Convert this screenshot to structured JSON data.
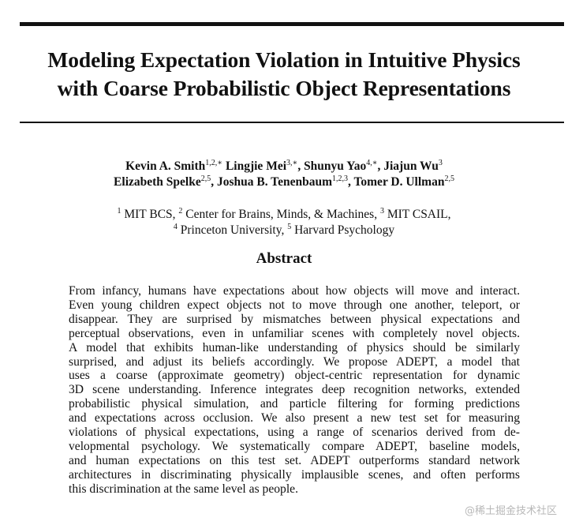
{
  "title_lines": [
    "Modeling Expectation Violation in Intuitive Physics",
    "with Coarse Probabilistic Object Representations"
  ],
  "authors_line1": [
    {
      "name": "Kevin A. Smith",
      "sup": "1,2,∗"
    },
    {
      "name": "Lingjie Mei",
      "sup": "3,∗"
    },
    {
      "name": "Shunyu Yao",
      "sup": "4,∗"
    },
    {
      "name": "Jiajun Wu",
      "sup": "3"
    }
  ],
  "authors_line2": [
    {
      "name": "Elizabeth Spelke",
      "sup": "2,5"
    },
    {
      "name": "Joshua B. Tenenbaum",
      "sup": "1,2,3"
    },
    {
      "name": "Tomer D. Ullman",
      "sup": "2,5"
    }
  ],
  "affiliations_line1": [
    {
      "sup": "1",
      "name": "MIT BCS"
    },
    {
      "sup": "2",
      "name": "Center for Brains, Minds, & Machines"
    },
    {
      "sup": "3",
      "name": "MIT CSAIL"
    }
  ],
  "affiliations_line2": [
    {
      "sup": "4",
      "name": "Princeton University"
    },
    {
      "sup": "5",
      "name": "Harvard Psychology"
    }
  ],
  "abstract_heading": "Abstract",
  "abstract_lines": [
    "From infancy, humans have expectations about how objects will move and interact.",
    "Even young children expect objects not to move through one another, teleport, or",
    "disappear. They are surprised by mismatches between physical expectations and",
    "perceptual observations, even in unfamiliar scenes with completely novel objects.",
    "A model that exhibits human-like understanding of physics should be similarly",
    "surprised, and adjust its beliefs accordingly. We propose ADEPT, a model that",
    "uses a coarse (approximate geometry) object-centric representation for dynamic",
    "3D scene understanding. Inference integrates deep recognition networks, extended",
    "probabilistic physical simulation, and particle filtering for forming predictions",
    "and expectations across occlusion. We also present a new test set for measuring",
    "violations of physical expectations, using a range of scenarios derived from de-",
    "velopmental psychology. We systematically compare ADEPT, baseline models,",
    "and human expectations on this test set. ADEPT outperforms standard network",
    "architectures in discriminating physically implausible scenes, and often performs",
    "this discrimination at the same level as people."
  ],
  "watermark": "@稀土掘金技术社区"
}
